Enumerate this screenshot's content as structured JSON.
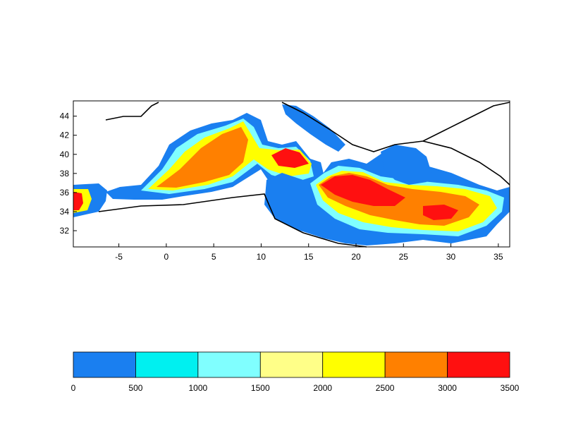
{
  "map": {
    "x_ticks": [
      "-5",
      "0",
      "5",
      "10",
      "15",
      "20",
      "25",
      "30",
      "35"
    ],
    "y_ticks": [
      "44",
      "42",
      "40",
      "38",
      "36",
      "34",
      "32"
    ],
    "x_range": [
      -9.8,
      36.2
    ],
    "y_range": [
      30.3,
      45.6
    ]
  },
  "colorbar": {
    "labels": [
      "0",
      "500",
      "1000",
      "1500",
      "2000",
      "2500",
      "3000",
      "3500"
    ],
    "colors": [
      "#1a7ff0",
      "#00f0f0",
      "#80ffff",
      "#ffff88",
      "#ffff00",
      "#ff8000",
      "#ff1010"
    ]
  },
  "palette": {
    "land": "#ffffff",
    "coast": "#000000",
    "depth_0": "#1a7ff0",
    "depth_500": "#00f0f0",
    "depth_1000": "#80ffff",
    "depth_1500": "#ffff88",
    "depth_2000": "#ffff00",
    "depth_2500": "#ff8000",
    "depth_3000": "#ff1010"
  }
}
